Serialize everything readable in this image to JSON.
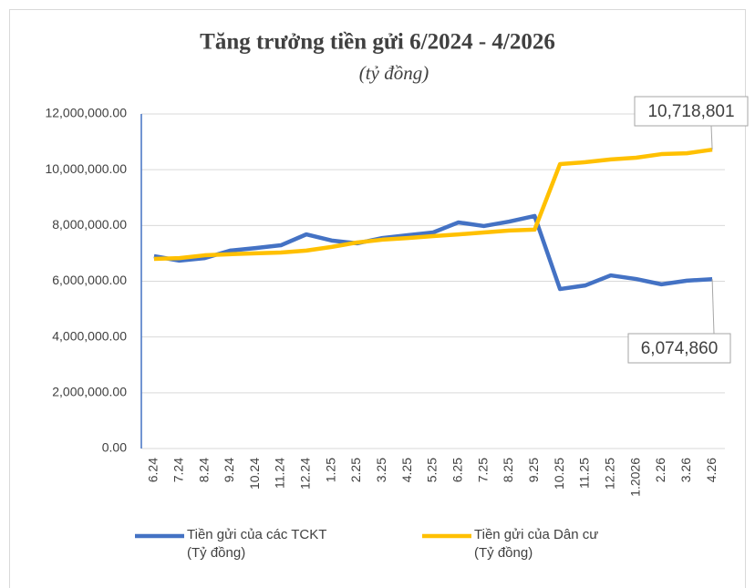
{
  "chart_data": {
    "type": "line",
    "title": "Tăng trưởng tiền gửi 6/2024 - 4/2026",
    "subtitle": "(tỷ đồng)",
    "categories": [
      "6.24",
      "7.24",
      "8.24",
      "9.24",
      "10.24",
      "11.24",
      "12.24",
      "1.25",
      "2.25",
      "3.25",
      "4.25",
      "5.25",
      "6.25",
      "7.25",
      "8.25",
      "9.25",
      "10.25",
      "11.25",
      "12.25",
      "1.2026",
      "2.26",
      "3.26",
      "4.26"
    ],
    "series": [
      {
        "name": "Tiền gửi của các TCKT\n(Tỷ đồng)",
        "color": "#4472c4",
        "values": [
          6900000,
          6740000,
          6830000,
          7100000,
          7190000,
          7290000,
          7680000,
          7460000,
          7360000,
          7550000,
          7650000,
          7750000,
          8110000,
          7980000,
          8140000,
          8340000,
          5720000,
          5850000,
          6210000,
          6080000,
          5890000,
          6020000,
          6074860
        ],
        "value_labels": [
          null,
          null,
          null,
          null,
          null,
          null,
          null,
          null,
          null,
          null,
          null,
          null,
          null,
          null,
          null,
          null,
          null,
          null,
          null,
          null,
          null,
          null,
          "6,074,860"
        ]
      },
      {
        "name": "Tiền gửi của Dân cư\n(Tỷ đồng)",
        "color": "#ffc000",
        "values": [
          6800000,
          6830000,
          6930000,
          6970000,
          7000000,
          7030000,
          7100000,
          7230000,
          7390000,
          7490000,
          7550000,
          7620000,
          7680000,
          7750000,
          7820000,
          7850000,
          10200000,
          10270000,
          10370000,
          10430000,
          10560000,
          10590000,
          10718801
        ],
        "value_labels": [
          null,
          null,
          null,
          null,
          null,
          null,
          null,
          null,
          null,
          null,
          null,
          null,
          null,
          null,
          null,
          null,
          null,
          null,
          null,
          null,
          null,
          null,
          "10,718,801"
        ]
      }
    ],
    "ylim": [
      0,
      12000000
    ],
    "yticks": [
      {
        "value": 0,
        "label": "0.00"
      },
      {
        "value": 2000000,
        "label": "2,000,000.00"
      },
      {
        "value": 4000000,
        "label": "4,000,000.00"
      },
      {
        "value": 6000000,
        "label": "6,000,000.00"
      },
      {
        "value": 8000000,
        "label": "8,000,000.00"
      },
      {
        "value": 10000000,
        "label": "10,000,000.00"
      },
      {
        "value": 12000000,
        "label": "12,000,000.00"
      }
    ],
    "grid": true,
    "legend": "bottom"
  }
}
